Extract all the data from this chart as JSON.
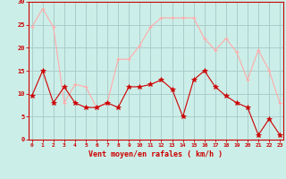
{
  "x": [
    0,
    1,
    2,
    3,
    4,
    5,
    6,
    7,
    8,
    9,
    10,
    11,
    12,
    13,
    14,
    15,
    16,
    17,
    18,
    19,
    20,
    21,
    22,
    23
  ],
  "wind_avg": [
    9.5,
    15,
    8,
    11.5,
    8,
    7,
    7,
    8,
    7,
    11.5,
    11.5,
    12,
    13,
    11,
    5,
    13,
    15,
    11.5,
    9.5,
    8,
    7,
    1,
    4.5,
    1
  ],
  "wind_gust": [
    24.5,
    28.5,
    24.5,
    8,
    12,
    11.5,
    7,
    8,
    17.5,
    17.5,
    20.5,
    24.5,
    26.5,
    26.5,
    26.5,
    26.5,
    22,
    19.5,
    22,
    19,
    13,
    19.5,
    15,
    8
  ],
  "bg_color": "#cceee8",
  "grid_color": "#aacccc",
  "line_avg_color": "#cc0000",
  "line_gust_color": "#ffaaaa",
  "xlabel": "Vent moyen/en rafales ( km/h )",
  "xlabel_color": "#cc0000",
  "tick_color": "#cc0000",
  "ylim": [
    0,
    30
  ],
  "yticks": [
    0,
    5,
    10,
    15,
    20,
    25,
    30
  ],
  "xticks": [
    0,
    1,
    2,
    3,
    4,
    5,
    6,
    7,
    8,
    9,
    10,
    11,
    12,
    13,
    14,
    15,
    16,
    17,
    18,
    19,
    20,
    21,
    22,
    23
  ]
}
